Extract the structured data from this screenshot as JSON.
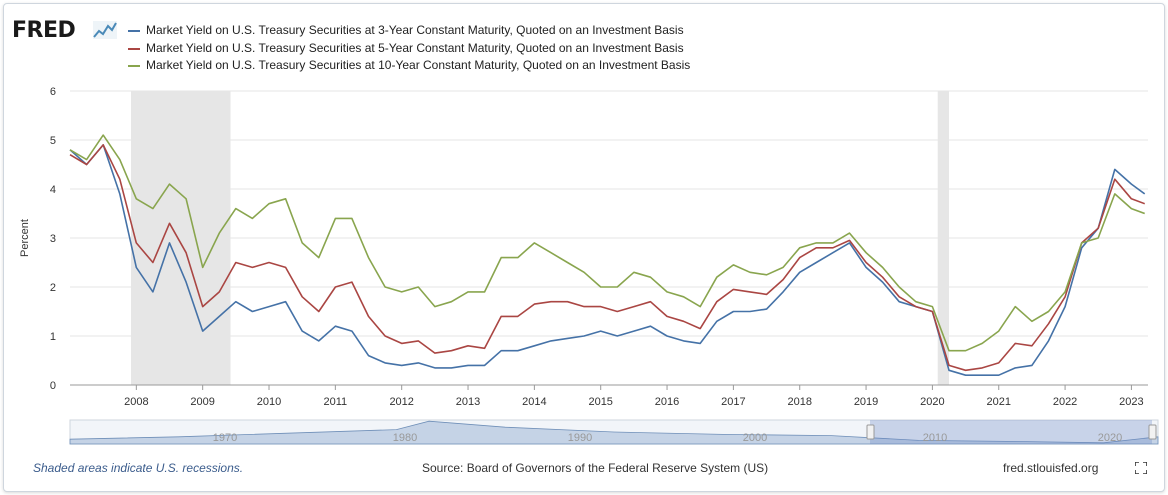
{
  "logo": {
    "text": "FRED"
  },
  "footer": {
    "recession_note": "Shaded areas indicate U.S. recessions.",
    "source": "Source: Board of Governors of the Federal Reserve System (US)",
    "site": "fred.stlouisfed.org"
  },
  "chart_data": {
    "type": "line",
    "ylabel": "Percent",
    "ylim": [
      0,
      6
    ],
    "xlim": [
      2007.0,
      2023.25
    ],
    "x_ticks": [
      2008,
      2009,
      2010,
      2011,
      2012,
      2013,
      2014,
      2015,
      2016,
      2017,
      2018,
      2019,
      2020,
      2021,
      2022,
      2023
    ],
    "y_ticks": [
      0,
      1,
      2,
      3,
      4,
      5,
      6
    ],
    "grid": true,
    "legend_position": "top",
    "recessions": [
      [
        2007.92,
        2009.42
      ],
      [
        2020.08,
        2020.25
      ]
    ],
    "x": [
      2007.0,
      2007.25,
      2007.5,
      2007.75,
      2008.0,
      2008.25,
      2008.5,
      2008.75,
      2009.0,
      2009.25,
      2009.5,
      2009.75,
      2010.0,
      2010.25,
      2010.5,
      2010.75,
      2011.0,
      2011.25,
      2011.5,
      2011.75,
      2012.0,
      2012.25,
      2012.5,
      2012.75,
      2013.0,
      2013.25,
      2013.5,
      2013.75,
      2014.0,
      2014.25,
      2014.5,
      2014.75,
      2015.0,
      2015.25,
      2015.5,
      2015.75,
      2016.0,
      2016.25,
      2016.5,
      2016.75,
      2017.0,
      2017.25,
      2017.5,
      2017.75,
      2018.0,
      2018.25,
      2018.5,
      2018.75,
      2019.0,
      2019.25,
      2019.5,
      2019.75,
      2020.0,
      2020.25,
      2020.5,
      2020.75,
      2021.0,
      2021.25,
      2021.5,
      2021.75,
      2022.0,
      2022.25,
      2022.5,
      2022.75,
      2023.0,
      2023.2
    ],
    "series": [
      {
        "name": "Market Yield on U.S. Treasury Securities at 3-Year Constant Maturity, Quoted on an Investment Basis",
        "color": "#4572a7",
        "values": [
          4.8,
          4.5,
          4.9,
          3.9,
          2.4,
          1.9,
          2.9,
          2.1,
          1.1,
          1.4,
          1.7,
          1.5,
          1.6,
          1.7,
          1.1,
          0.9,
          1.2,
          1.1,
          0.6,
          0.45,
          0.4,
          0.45,
          0.35,
          0.35,
          0.4,
          0.4,
          0.7,
          0.7,
          0.8,
          0.9,
          0.95,
          1.0,
          1.1,
          1.0,
          1.1,
          1.2,
          1.0,
          0.9,
          0.85,
          1.3,
          1.5,
          1.5,
          1.55,
          1.9,
          2.3,
          2.5,
          2.7,
          2.9,
          2.4,
          2.1,
          1.7,
          1.6,
          1.5,
          0.3,
          0.2,
          0.2,
          0.2,
          0.35,
          0.4,
          0.9,
          1.6,
          2.8,
          3.2,
          4.4,
          4.1,
          3.9
        ]
      },
      {
        "name": "Market Yield on U.S. Treasury Securities at 5-Year Constant Maturity, Quoted on an Investment Basis",
        "color": "#aa4643",
        "values": [
          4.7,
          4.5,
          4.9,
          4.2,
          2.9,
          2.5,
          3.3,
          2.7,
          1.6,
          1.9,
          2.5,
          2.4,
          2.5,
          2.4,
          1.8,
          1.5,
          2.0,
          2.1,
          1.4,
          1.0,
          0.85,
          0.9,
          0.65,
          0.7,
          0.8,
          0.75,
          1.4,
          1.4,
          1.65,
          1.7,
          1.7,
          1.6,
          1.6,
          1.5,
          1.6,
          1.7,
          1.4,
          1.3,
          1.15,
          1.7,
          1.95,
          1.9,
          1.85,
          2.15,
          2.6,
          2.8,
          2.8,
          2.95,
          2.5,
          2.2,
          1.8,
          1.6,
          1.5,
          0.4,
          0.3,
          0.35,
          0.45,
          0.85,
          0.8,
          1.25,
          1.8,
          2.9,
          3.2,
          4.2,
          3.8,
          3.7
        ]
      },
      {
        "name": "Market Yield on U.S. Treasury Securities at 10-Year Constant Maturity, Quoted on an Investment Basis",
        "color": "#89a54e",
        "values": [
          4.8,
          4.6,
          5.1,
          4.6,
          3.8,
          3.6,
          4.1,
          3.8,
          2.4,
          3.1,
          3.6,
          3.4,
          3.7,
          3.8,
          2.9,
          2.6,
          3.4,
          3.4,
          2.6,
          2.0,
          1.9,
          2.0,
          1.6,
          1.7,
          1.9,
          1.9,
          2.6,
          2.6,
          2.9,
          2.7,
          2.5,
          2.3,
          2.0,
          2.0,
          2.3,
          2.2,
          1.9,
          1.8,
          1.6,
          2.2,
          2.45,
          2.3,
          2.25,
          2.4,
          2.8,
          2.9,
          2.9,
          3.1,
          2.7,
          2.4,
          2.0,
          1.7,
          1.6,
          0.7,
          0.7,
          0.85,
          1.1,
          1.6,
          1.3,
          1.5,
          1.9,
          2.9,
          3.0,
          3.9,
          3.6,
          3.5
        ]
      }
    ],
    "navigator": {
      "labels": [
        "1970",
        "1980",
        "1990",
        "2000",
        "2010",
        "2020"
      ]
    }
  }
}
